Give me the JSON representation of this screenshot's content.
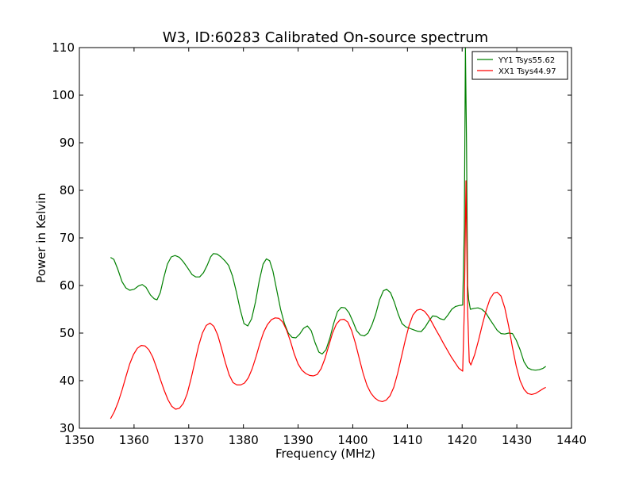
{
  "chart_data": {
    "type": "line",
    "title": "W3, ID:60283 Calibrated On-source spectrum",
    "xlabel": "Frequency (MHz)",
    "ylabel": "Power in Kelvin",
    "xlim": [
      1350,
      1440
    ],
    "ylim": [
      30,
      110
    ],
    "xticks": [
      1350,
      1360,
      1370,
      1380,
      1390,
      1400,
      1410,
      1420,
      1430,
      1440
    ],
    "yticks": [
      30,
      40,
      50,
      60,
      70,
      80,
      90,
      100,
      110
    ],
    "grid": false,
    "legend_position": "top-right",
    "series": [
      {
        "name": "YY1 Tsys55.62",
        "color": "#008000",
        "points": [
          [
            1355.7,
            65.9
          ],
          [
            1356.3,
            65.5
          ],
          [
            1357,
            63.5
          ],
          [
            1357.8,
            60.8
          ],
          [
            1358.5,
            59.5
          ],
          [
            1359.2,
            59.0
          ],
          [
            1360,
            59.2
          ],
          [
            1360.8,
            59.9
          ],
          [
            1361.5,
            60.2
          ],
          [
            1362.2,
            59.6
          ],
          [
            1363,
            58.0
          ],
          [
            1363.7,
            57.2
          ],
          [
            1364.2,
            57.0
          ],
          [
            1364.8,
            58.5
          ],
          [
            1365.4,
            61.5
          ],
          [
            1366.1,
            64.5
          ],
          [
            1366.8,
            66.0
          ],
          [
            1367.5,
            66.3
          ],
          [
            1368.3,
            65.9
          ],
          [
            1369,
            65.0
          ],
          [
            1369.8,
            63.7
          ],
          [
            1370.6,
            62.3
          ],
          [
            1371.3,
            61.8
          ],
          [
            1372,
            61.8
          ],
          [
            1372.7,
            62.7
          ],
          [
            1373.4,
            64.3
          ],
          [
            1374,
            66.0
          ],
          [
            1374.5,
            66.7
          ],
          [
            1375.2,
            66.6
          ],
          [
            1375.9,
            66.0
          ],
          [
            1376.6,
            65.2
          ],
          [
            1377.3,
            64.2
          ],
          [
            1378,
            62.0
          ],
          [
            1378.7,
            58.7
          ],
          [
            1379.4,
            55.0
          ],
          [
            1380.1,
            52.0
          ],
          [
            1380.8,
            51.5
          ],
          [
            1381.5,
            53.0
          ],
          [
            1382.2,
            56.5
          ],
          [
            1382.9,
            61.0
          ],
          [
            1383.6,
            64.5
          ],
          [
            1384.2,
            65.6
          ],
          [
            1384.8,
            65.2
          ],
          [
            1385.4,
            63.0
          ],
          [
            1386.1,
            59.0
          ],
          [
            1386.8,
            55.0
          ],
          [
            1387.5,
            52.0
          ],
          [
            1388.2,
            50.0
          ],
          [
            1388.9,
            49.1
          ],
          [
            1389.6,
            49.0
          ],
          [
            1390.3,
            49.8
          ],
          [
            1391,
            51.0
          ],
          [
            1391.7,
            51.5
          ],
          [
            1392.4,
            50.5
          ],
          [
            1393.1,
            48.0
          ],
          [
            1393.8,
            46.0
          ],
          [
            1394.4,
            45.6
          ],
          [
            1395.1,
            46.5
          ],
          [
            1395.8,
            48.9
          ],
          [
            1396.5,
            52.0
          ],
          [
            1397.2,
            54.5
          ],
          [
            1397.9,
            55.4
          ],
          [
            1398.6,
            55.3
          ],
          [
            1399.3,
            54.3
          ],
          [
            1400,
            52.5
          ],
          [
            1400.7,
            50.5
          ],
          [
            1401.4,
            49.6
          ],
          [
            1402.1,
            49.4
          ],
          [
            1402.8,
            50.0
          ],
          [
            1403.5,
            51.7
          ],
          [
            1404.2,
            54.0
          ],
          [
            1404.9,
            57.0
          ],
          [
            1405.6,
            58.9
          ],
          [
            1406.2,
            59.2
          ],
          [
            1406.9,
            58.5
          ],
          [
            1407.6,
            56.5
          ],
          [
            1408.3,
            54.0
          ],
          [
            1409,
            52.0
          ],
          [
            1409.7,
            51.3
          ],
          [
            1410.4,
            51.0
          ],
          [
            1411.1,
            50.7
          ],
          [
            1411.8,
            50.4
          ],
          [
            1412.5,
            50.3
          ],
          [
            1413.2,
            51.2
          ],
          [
            1413.9,
            52.5
          ],
          [
            1414.6,
            53.6
          ],
          [
            1415.3,
            53.5
          ],
          [
            1416,
            53.0
          ],
          [
            1416.7,
            52.8
          ],
          [
            1417.4,
            53.8
          ],
          [
            1418.1,
            55.0
          ],
          [
            1418.8,
            55.6
          ],
          [
            1419.5,
            55.8
          ],
          [
            1420.1,
            55.9
          ],
          [
            1420.4,
            72.0
          ],
          [
            1420.6,
            110.0
          ],
          [
            1420.8,
            90.0
          ],
          [
            1421.0,
            60.0
          ],
          [
            1421.2,
            57.0
          ],
          [
            1421.5,
            55.0
          ],
          [
            1422.2,
            55.2
          ],
          [
            1422.9,
            55.3
          ],
          [
            1423.6,
            55.0
          ],
          [
            1424.3,
            54.3
          ],
          [
            1425,
            53.0
          ],
          [
            1425.7,
            51.8
          ],
          [
            1426.4,
            50.6
          ],
          [
            1427.1,
            49.9
          ],
          [
            1427.8,
            49.8
          ],
          [
            1428.5,
            50.0
          ],
          [
            1429.2,
            49.9
          ],
          [
            1429.9,
            48.5
          ],
          [
            1430.6,
            46.5
          ],
          [
            1431.3,
            44.0
          ],
          [
            1432,
            42.7
          ],
          [
            1432.7,
            42.3
          ],
          [
            1433.4,
            42.2
          ],
          [
            1434.1,
            42.3
          ],
          [
            1434.8,
            42.6
          ],
          [
            1435.3,
            43.0
          ]
        ]
      },
      {
        "name": "XX1 Tsys44.97",
        "color": "#ff0000",
        "points": [
          [
            1355.7,
            32.0
          ],
          [
            1356.4,
            33.5
          ],
          [
            1357.1,
            35.5
          ],
          [
            1357.8,
            38.0
          ],
          [
            1358.5,
            40.8
          ],
          [
            1359.2,
            43.5
          ],
          [
            1359.9,
            45.5
          ],
          [
            1360.6,
            46.8
          ],
          [
            1361.3,
            47.4
          ],
          [
            1362,
            47.3
          ],
          [
            1362.7,
            46.5
          ],
          [
            1363.4,
            45.0
          ],
          [
            1364.1,
            42.8
          ],
          [
            1364.8,
            40.3
          ],
          [
            1365.5,
            38.0
          ],
          [
            1366.2,
            36.0
          ],
          [
            1366.9,
            34.6
          ],
          [
            1367.6,
            34.0
          ],
          [
            1368.3,
            34.2
          ],
          [
            1369,
            35.2
          ],
          [
            1369.7,
            37.2
          ],
          [
            1370.4,
            40.3
          ],
          [
            1371.1,
            43.8
          ],
          [
            1371.8,
            47.3
          ],
          [
            1372.5,
            50.0
          ],
          [
            1373.2,
            51.6
          ],
          [
            1373.9,
            52.1
          ],
          [
            1374.6,
            51.4
          ],
          [
            1375.3,
            49.6
          ],
          [
            1376,
            46.8
          ],
          [
            1376.7,
            43.8
          ],
          [
            1377.4,
            41.2
          ],
          [
            1378.1,
            39.6
          ],
          [
            1378.8,
            39.1
          ],
          [
            1379.5,
            39.1
          ],
          [
            1380.2,
            39.5
          ],
          [
            1380.9,
            40.6
          ],
          [
            1381.6,
            42.5
          ],
          [
            1382.3,
            45.0
          ],
          [
            1383,
            47.8
          ],
          [
            1383.7,
            50.2
          ],
          [
            1384.4,
            51.8
          ],
          [
            1385.1,
            52.8
          ],
          [
            1385.8,
            53.2
          ],
          [
            1386.5,
            53.1
          ],
          [
            1387.2,
            52.3
          ],
          [
            1387.9,
            50.6
          ],
          [
            1388.6,
            48.3
          ],
          [
            1389.3,
            45.6
          ],
          [
            1390,
            43.5
          ],
          [
            1390.7,
            42.2
          ],
          [
            1391.4,
            41.5
          ],
          [
            1392.1,
            41.1
          ],
          [
            1392.8,
            41.0
          ],
          [
            1393.5,
            41.3
          ],
          [
            1394.2,
            42.5
          ],
          [
            1394.9,
            44.6
          ],
          [
            1395.6,
            47.3
          ],
          [
            1396.3,
            50.0
          ],
          [
            1397,
            51.9
          ],
          [
            1397.7,
            52.8
          ],
          [
            1398.4,
            52.9
          ],
          [
            1399.1,
            52.3
          ],
          [
            1399.8,
            50.5
          ],
          [
            1400.5,
            47.8
          ],
          [
            1401.2,
            44.6
          ],
          [
            1401.9,
            41.5
          ],
          [
            1402.6,
            39.0
          ],
          [
            1403.3,
            37.4
          ],
          [
            1404,
            36.4
          ],
          [
            1404.7,
            35.8
          ],
          [
            1405.4,
            35.6
          ],
          [
            1406.1,
            35.9
          ],
          [
            1406.8,
            36.8
          ],
          [
            1407.5,
            38.6
          ],
          [
            1408.2,
            41.5
          ],
          [
            1408.9,
            45.0
          ],
          [
            1409.6,
            48.5
          ],
          [
            1410.3,
            51.6
          ],
          [
            1411,
            53.8
          ],
          [
            1411.7,
            54.8
          ],
          [
            1412.4,
            55.0
          ],
          [
            1413.1,
            54.6
          ],
          [
            1413.8,
            53.6
          ],
          [
            1414.5,
            52.2
          ],
          [
            1415.2,
            50.7
          ],
          [
            1415.9,
            49.3
          ],
          [
            1416.6,
            47.8
          ],
          [
            1417.3,
            46.4
          ],
          [
            1418,
            45.0
          ],
          [
            1418.7,
            43.8
          ],
          [
            1419.4,
            42.6
          ],
          [
            1420.1,
            42.0
          ],
          [
            1420.4,
            55.0
          ],
          [
            1420.7,
            82.0
          ],
          [
            1421.0,
            55.0
          ],
          [
            1421.3,
            44.0
          ],
          [
            1421.6,
            43.3
          ],
          [
            1422.3,
            45.5
          ],
          [
            1423,
            48.5
          ],
          [
            1423.7,
            51.8
          ],
          [
            1424.4,
            54.8
          ],
          [
            1425.1,
            57.2
          ],
          [
            1425.8,
            58.4
          ],
          [
            1426.4,
            58.6
          ],
          [
            1427.1,
            57.8
          ],
          [
            1427.8,
            55.3
          ],
          [
            1428.5,
            51.5
          ],
          [
            1429.2,
            47.0
          ],
          [
            1429.9,
            43.0
          ],
          [
            1430.6,
            40.0
          ],
          [
            1431.3,
            38.2
          ],
          [
            1432,
            37.3
          ],
          [
            1432.7,
            37.1
          ],
          [
            1433.4,
            37.3
          ],
          [
            1434.1,
            37.8
          ],
          [
            1434.8,
            38.3
          ],
          [
            1435.3,
            38.6
          ]
        ]
      }
    ]
  }
}
